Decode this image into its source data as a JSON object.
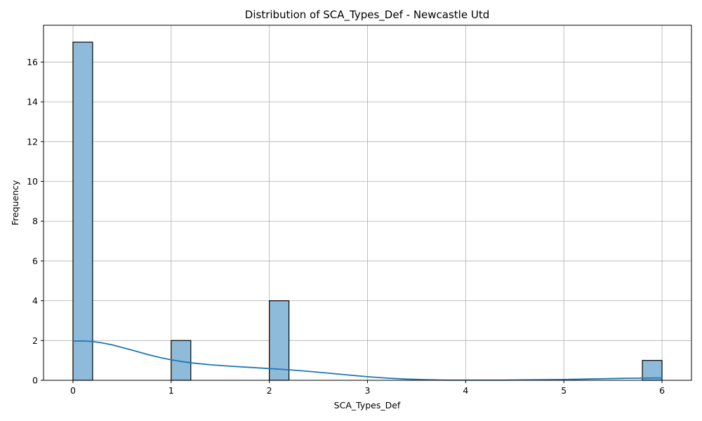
{
  "chart_data": {
    "type": "bar",
    "title": "Distribution of SCA_Types_Def - Newcastle Utd",
    "xlabel": "SCA_Types_Def",
    "ylabel": "Frequency",
    "xlim": [
      -0.3,
      6.3
    ],
    "ylim": [
      0,
      17.85
    ],
    "xticks": [
      0,
      1,
      2,
      3,
      4,
      5,
      6
    ],
    "yticks": [
      0,
      2,
      4,
      6,
      8,
      10,
      12,
      14,
      16
    ],
    "grid": true,
    "bar_color": "#8fbbdb",
    "line_color": "#1f77b4",
    "bins": [
      {
        "x0": 0.0,
        "x1": 0.2,
        "count": 17
      },
      {
        "x0": 1.0,
        "x1": 1.2,
        "count": 2
      },
      {
        "x0": 2.0,
        "x1": 2.2,
        "count": 4
      },
      {
        "x0": 5.8,
        "x1": 6.0,
        "count": 1
      }
    ],
    "kde": {
      "x": [
        0.0,
        0.1,
        0.2,
        0.3,
        0.4,
        0.5,
        0.6,
        0.7,
        0.8,
        0.9,
        1.0,
        1.1,
        1.2,
        1.4,
        1.6,
        1.8,
        2.0,
        2.2,
        2.4,
        2.6,
        2.8,
        3.0,
        3.2,
        3.4,
        3.6,
        3.8,
        4.0,
        4.2,
        4.4,
        4.6,
        4.8,
        5.0,
        5.2,
        5.4,
        5.6,
        5.8,
        6.0
      ],
      "y": [
        1.97,
        1.98,
        1.95,
        1.88,
        1.78,
        1.65,
        1.52,
        1.38,
        1.25,
        1.13,
        1.03,
        0.95,
        0.88,
        0.78,
        0.71,
        0.65,
        0.59,
        0.53,
        0.45,
        0.36,
        0.27,
        0.18,
        0.11,
        0.06,
        0.03,
        0.01,
        0.01,
        0.01,
        0.01,
        0.02,
        0.03,
        0.04,
        0.06,
        0.08,
        0.1,
        0.11,
        0.12
      ]
    }
  }
}
